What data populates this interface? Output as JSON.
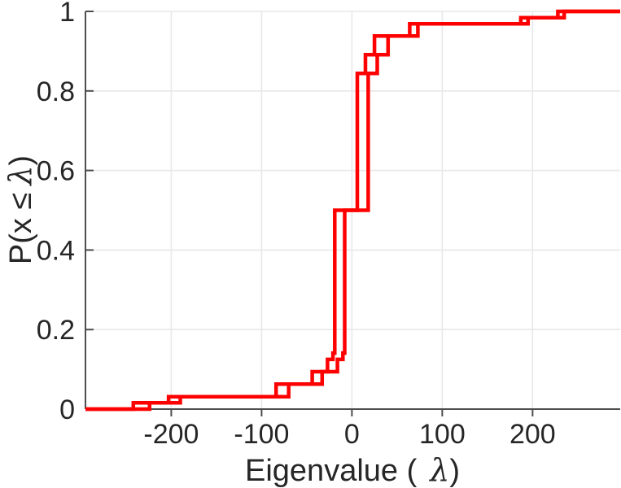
{
  "figure": {
    "background": "#ffffff",
    "xlabel": {
      "full": "Eigenvalue ( λ)",
      "prefix": "Eigenvalue (",
      "lambda": "λ",
      "suffix": ")"
    },
    "ylabel": {
      "full": "P(x ≤ λ)",
      "prefix": "P(x ≤",
      "lambda": "λ",
      "suffix": ")"
    }
  },
  "chart_data": {
    "type": "line",
    "subtype": "empirical-cdf-stairs",
    "title": "",
    "xlabel": "Eigenvalue ( λ)",
    "ylabel": "P(x ≤ λ)",
    "xlim": [
      -295,
      297
    ],
    "ylim": [
      0,
      1
    ],
    "xticks": {
      "values": [
        -200,
        -100,
        0,
        100,
        200
      ],
      "labels": [
        "-200",
        "-100",
        "0",
        "100",
        "200"
      ]
    },
    "yticks": {
      "values": [
        0,
        0.2,
        0.4,
        0.6,
        0.8,
        1
      ],
      "labels": [
        "0",
        "0.2",
        "0.4",
        "0.6",
        "0.8",
        "1"
      ]
    },
    "grid": true,
    "legend": null,
    "colors": {
      "line": "#ff0000",
      "grid": "#e8e8e8",
      "axis": "#4d4d4d",
      "text": "#262626"
    },
    "line_width": 4.5,
    "series": [
      {
        "name": "ecdf-1",
        "start_level": 0,
        "steps": [
          [
            -242,
            0.016
          ],
          [
            -203,
            0.031
          ],
          [
            -84,
            0.063
          ],
          [
            -44,
            0.094
          ],
          [
            -27,
            0.125
          ],
          [
            -21,
            0.141
          ],
          [
            -19,
            0.5
          ],
          [
            6,
            0.844
          ],
          [
            15,
            0.891
          ],
          [
            25,
            0.938
          ],
          [
            64,
            0.969
          ],
          [
            187,
            0.984
          ],
          [
            228,
            1.0
          ]
        ]
      },
      {
        "name": "ecdf-2",
        "start_level": 0,
        "steps": [
          [
            -224,
            0.016
          ],
          [
            -190,
            0.031
          ],
          [
            -70,
            0.063
          ],
          [
            -33,
            0.094
          ],
          [
            -16,
            0.125
          ],
          [
            -10,
            0.141
          ],
          [
            -8,
            0.5
          ],
          [
            18,
            0.844
          ],
          [
            28,
            0.891
          ],
          [
            40,
            0.938
          ],
          [
            73,
            0.969
          ],
          [
            195,
            0.984
          ],
          [
            235,
            1.0
          ]
        ]
      }
    ]
  }
}
